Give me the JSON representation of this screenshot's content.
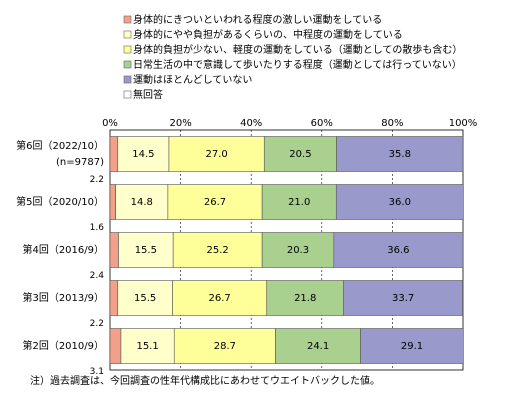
{
  "chart_data": {
    "type": "stacked-bar-horizontal",
    "categories": [
      "第6回（2022/10）",
      "第5回（2020/10）",
      "第4回（2016/9）",
      "第3回（2013/9）",
      "第2回（2010/9）"
    ],
    "sample_size_label": "(n=9787)",
    "series": [
      {
        "name": "身体的にきついといわれる程度の激しい運動をしている",
        "color": "#f2a08a",
        "values": [
          2.2,
          1.6,
          2.4,
          2.2,
          3.1
        ]
      },
      {
        "name": "身体的にやや負担があるくらいの、中程度の運動をしている",
        "color": "#ffffcc",
        "values": [
          14.5,
          14.8,
          15.5,
          15.5,
          15.1
        ]
      },
      {
        "name": "身体的負担が少ない、軽度の運動をしている（運動としての散歩も含む）",
        "color": "#ffff99",
        "values": [
          27.0,
          26.7,
          25.2,
          26.7,
          28.7
        ],
        "value_labels": [
          "27.0",
          "26.7",
          "25.2",
          "26.7",
          "28.7"
        ]
      },
      {
        "name": "日常生活の中で意識して歩いたりする程度（運動としては行っていない）",
        "color": "#a9d08e",
        "values": [
          20.5,
          21.0,
          20.3,
          21.8,
          24.1
        ],
        "value_labels": [
          "20.5",
          "21.0",
          "20.3",
          "21.8",
          "24.1"
        ]
      },
      {
        "name": "運動はほとんどしていない",
        "color": "#9999cc",
        "values": [
          35.8,
          36.0,
          36.6,
          33.7,
          29.1
        ],
        "value_labels": [
          "35.8",
          "36.0",
          "36.6",
          "33.7",
          "29.1"
        ]
      },
      {
        "name": "無回答",
        "color": "#ffffff",
        "values": [
          0,
          0,
          0,
          0.1,
          0
        ]
      }
    ],
    "xlim": [
      0,
      100
    ],
    "xticks": [
      {
        "value": 0,
        "label": "0%"
      },
      {
        "value": 20,
        "label": "20%"
      },
      {
        "value": 40,
        "label": "40%"
      },
      {
        "value": 60,
        "label": "60%"
      },
      {
        "value": 80,
        "label": "80%"
      },
      {
        "value": 100,
        "label": "100%"
      }
    ],
    "grid": true,
    "note": "注）過去調査は、今回調査の性年代構成比にあわせてウエイトバックした値。"
  }
}
